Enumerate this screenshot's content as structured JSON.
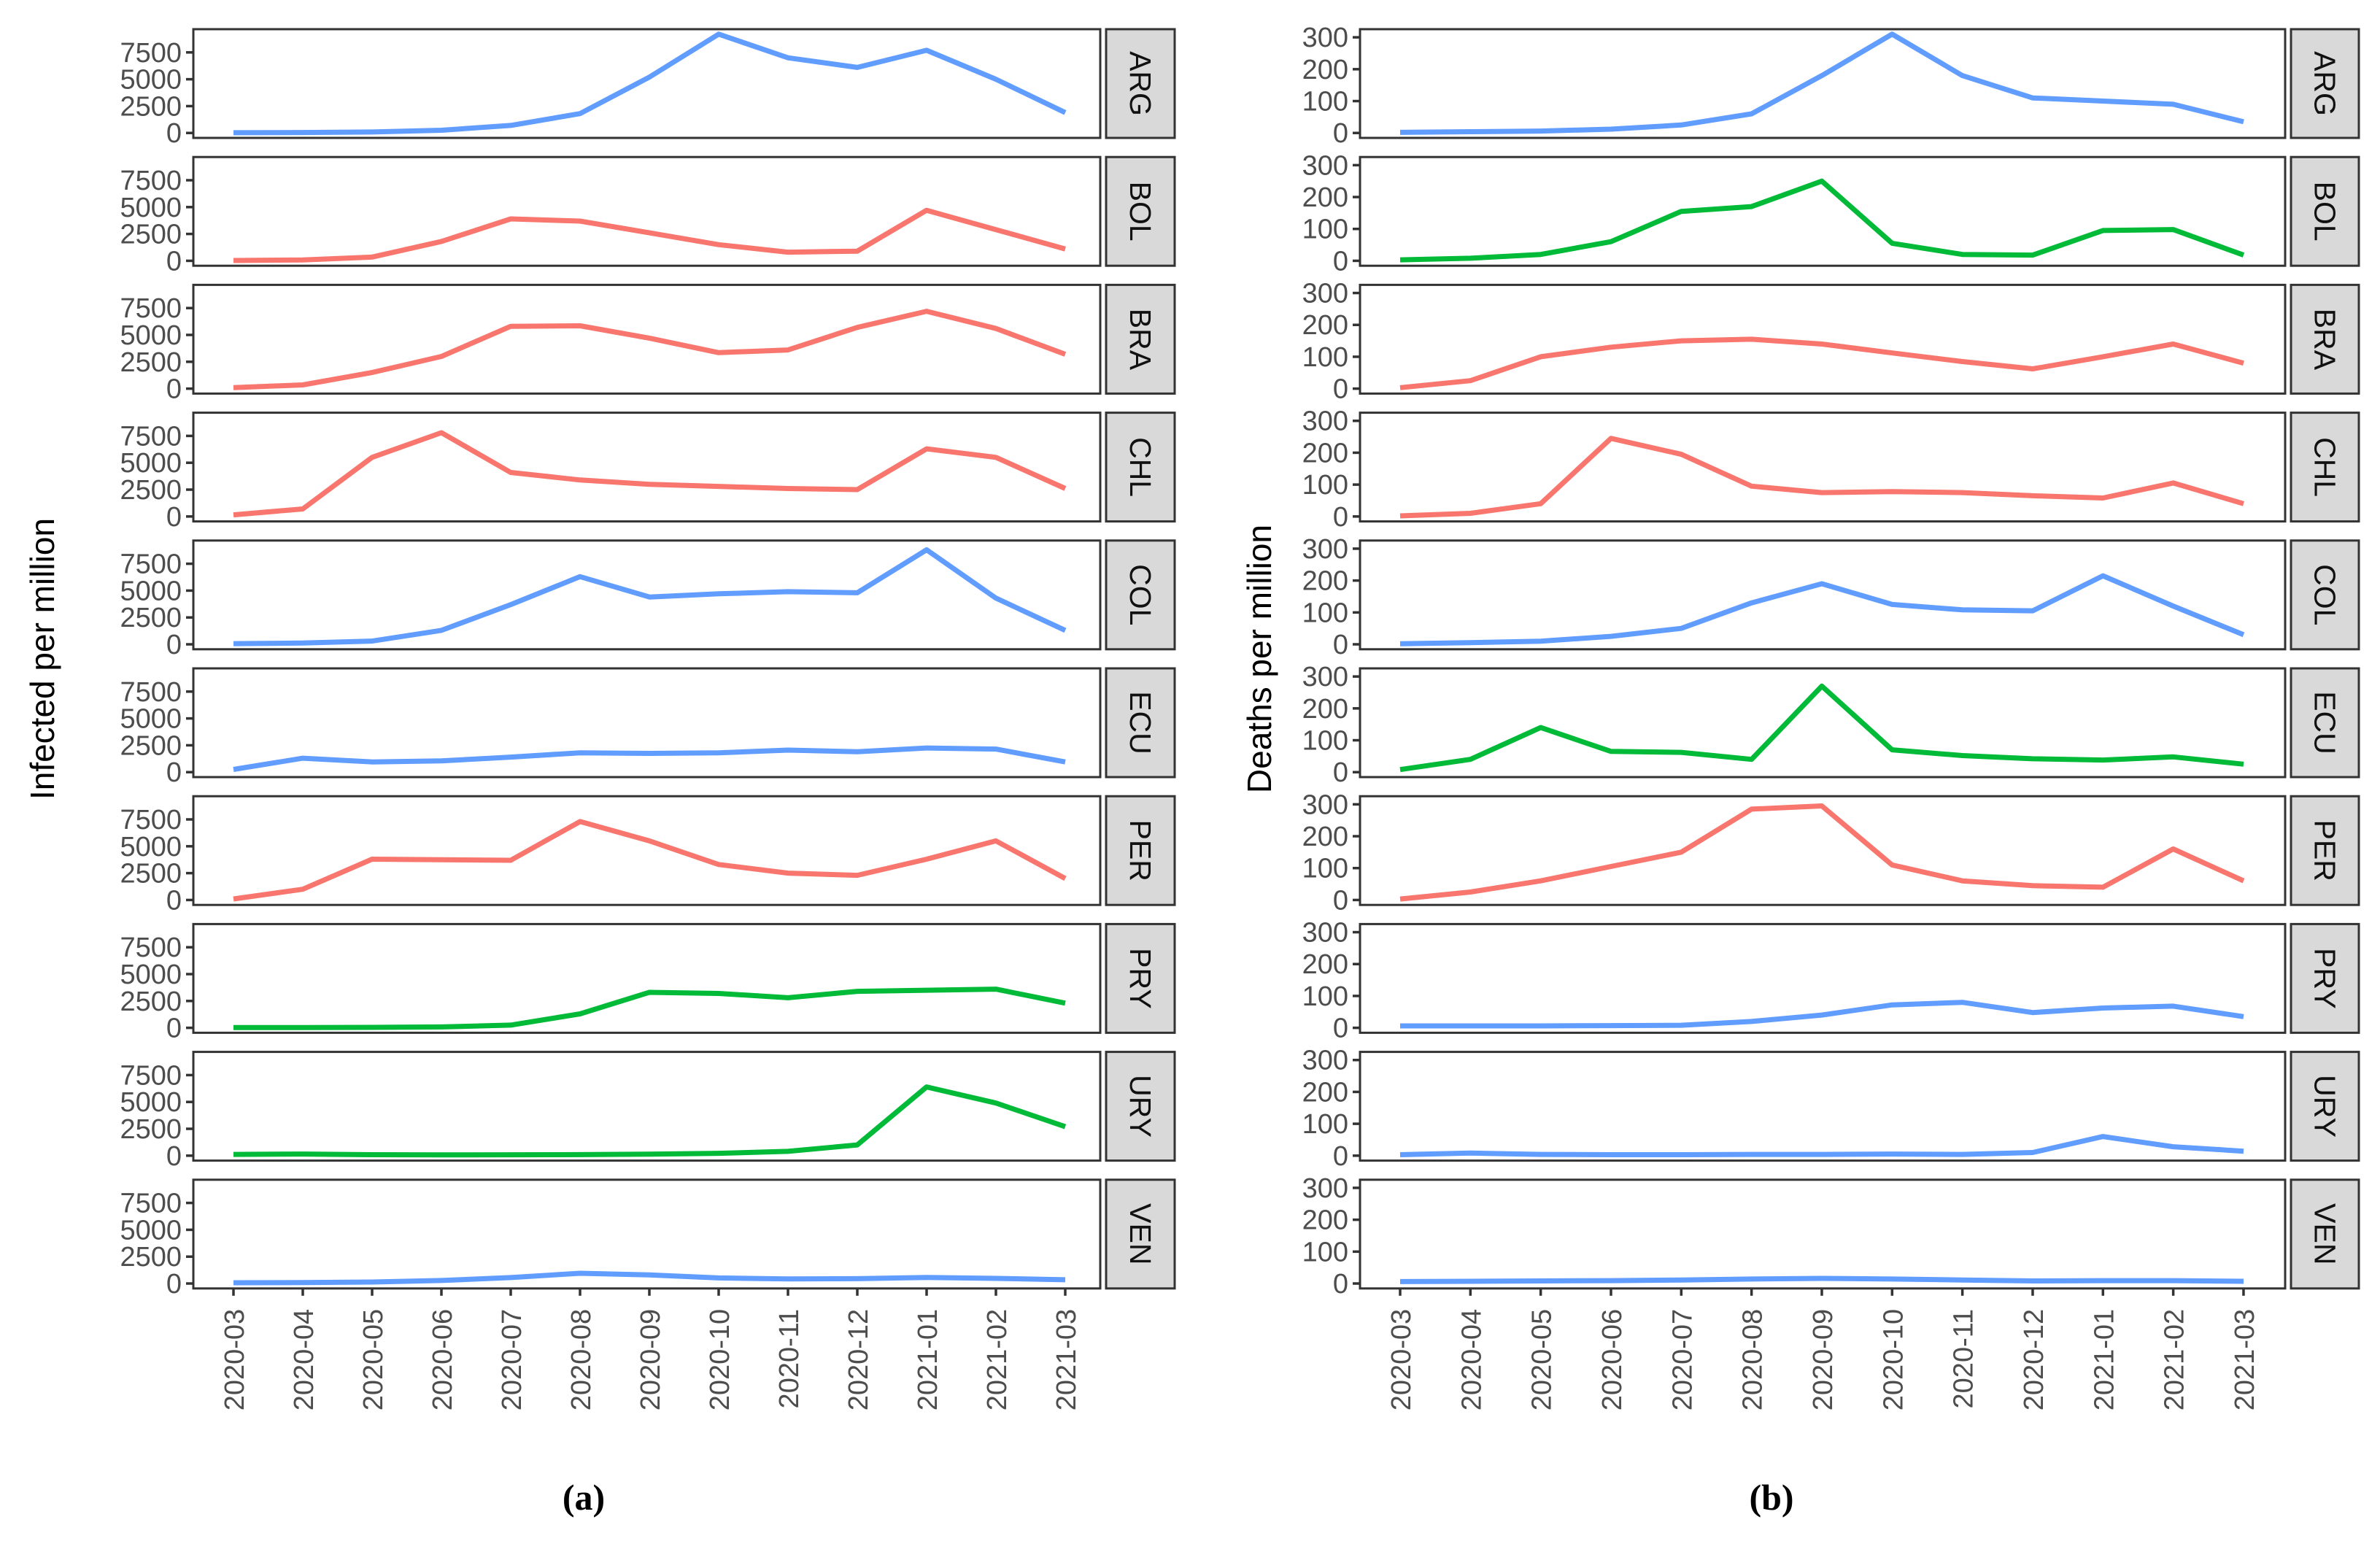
{
  "figure_kind": "faceted-line-chart-two-panels",
  "colors": {
    "red": "#F8766D",
    "green": "#00BA38",
    "blue": "#619CFF",
    "strip_bg": "#D9D9D9",
    "panel_border": "#333333",
    "tick_text": "#4D4D4D",
    "strip_text": "#111111"
  },
  "chart_data": [
    {
      "type": "line",
      "panel": "a",
      "caption": "(a)",
      "ylabel": "Infected per million",
      "xlabel": "",
      "legend": "none",
      "grid": false,
      "yticks": [
        0,
        2500,
        5000,
        7500
      ],
      "ylim": [
        0,
        9200
      ],
      "x_labels": [
        "2020-03",
        "2020-04",
        "2020-05",
        "2020-06",
        "2020-07",
        "2020-08",
        "2020-09",
        "2020-10",
        "2020-11",
        "2020-12",
        "2021-01",
        "2021-02",
        "2021-03"
      ],
      "facets": [
        {
          "label": "ARG",
          "color": "#619CFF",
          "values": [
            20,
            40,
            90,
            250,
            700,
            1800,
            5200,
            9200,
            7000,
            6100,
            7700,
            5000,
            1900
          ]
        },
        {
          "label": "BOL",
          "color": "#F8766D",
          "values": [
            30,
            80,
            350,
            1800,
            3900,
            3700,
            2600,
            1500,
            800,
            900,
            4700,
            2900,
            1100
          ]
        },
        {
          "label": "BRA",
          "color": "#F8766D",
          "values": [
            100,
            350,
            1500,
            3000,
            5800,
            5850,
            4700,
            3350,
            3600,
            5700,
            7200,
            5600,
            3200
          ]
        },
        {
          "label": "CHL",
          "color": "#F8766D",
          "values": [
            150,
            700,
            5500,
            7800,
            4100,
            3400,
            3000,
            2800,
            2600,
            2500,
            6300,
            5500,
            2600
          ]
        },
        {
          "label": "COL",
          "color": "#619CFF",
          "values": [
            60,
            120,
            300,
            1300,
            3700,
            6300,
            4400,
            4700,
            4900,
            4800,
            8800,
            4300,
            1300
          ]
        },
        {
          "label": "ECU",
          "color": "#619CFF",
          "values": [
            250,
            1300,
            950,
            1050,
            1400,
            1800,
            1750,
            1800,
            2050,
            1900,
            2250,
            2150,
            950
          ]
        },
        {
          "label": "PER",
          "color": "#F8766D",
          "values": [
            100,
            1000,
            3800,
            3750,
            3700,
            7300,
            5500,
            3300,
            2500,
            2300,
            3800,
            5500,
            2000
          ]
        },
        {
          "label": "PRY",
          "color": "#00BA38",
          "values": [
            25,
            30,
            45,
            80,
            250,
            1300,
            3300,
            3200,
            2800,
            3400,
            3500,
            3600,
            2300
          ]
        },
        {
          "label": "URY",
          "color": "#00BA38",
          "values": [
            120,
            150,
            90,
            70,
            80,
            100,
            140,
            220,
            400,
            1000,
            6400,
            4900,
            2700
          ]
        },
        {
          "label": "VEN",
          "color": "#619CFF",
          "values": [
            70,
            80,
            140,
            280,
            550,
            950,
            800,
            520,
            420,
            450,
            560,
            480,
            350
          ]
        }
      ]
    },
    {
      "type": "line",
      "panel": "b",
      "caption": "(b)",
      "ylabel": "Deaths per million",
      "xlabel": "",
      "legend": "none",
      "grid": false,
      "yticks": [
        0,
        100,
        200,
        300
      ],
      "ylim": [
        0,
        310
      ],
      "x_labels": [
        "2020-03",
        "2020-04",
        "2020-05",
        "2020-06",
        "2020-07",
        "2020-08",
        "2020-09",
        "2020-10",
        "2020-11",
        "2020-12",
        "2021-01",
        "2021-02",
        "2021-03"
      ],
      "facets": [
        {
          "label": "ARG",
          "color": "#619CFF",
          "values": [
            2,
            4,
            6,
            12,
            25,
            60,
            180,
            310,
            180,
            110,
            100,
            90,
            35
          ]
        },
        {
          "label": "BOL",
          "color": "#00BA38",
          "values": [
            3,
            8,
            20,
            60,
            155,
            170,
            250,
            55,
            20,
            18,
            95,
            98,
            18
          ]
        },
        {
          "label": "BRA",
          "color": "#F8766D",
          "values": [
            3,
            25,
            100,
            130,
            150,
            155,
            140,
            112,
            85,
            62,
            100,
            140,
            80
          ]
        },
        {
          "label": "CHL",
          "color": "#F8766D",
          "values": [
            2,
            10,
            40,
            245,
            195,
            95,
            75,
            78,
            75,
            65,
            58,
            105,
            40
          ]
        },
        {
          "label": "COL",
          "color": "#619CFF",
          "values": [
            2,
            5,
            10,
            25,
            50,
            130,
            190,
            125,
            108,
            105,
            215,
            120,
            30
          ]
        },
        {
          "label": "ECU",
          "color": "#00BA38",
          "values": [
            8,
            40,
            140,
            65,
            62,
            40,
            270,
            70,
            52,
            42,
            38,
            48,
            25
          ]
        },
        {
          "label": "PER",
          "color": "#F8766D",
          "values": [
            3,
            25,
            60,
            105,
            150,
            285,
            295,
            110,
            60,
            45,
            40,
            160,
            60
          ]
        },
        {
          "label": "PRY",
          "color": "#619CFF",
          "values": [
            6,
            6,
            6,
            7,
            8,
            20,
            40,
            72,
            80,
            48,
            62,
            68,
            35
          ]
        },
        {
          "label": "URY",
          "color": "#619CFF",
          "values": [
            3,
            8,
            4,
            3,
            3,
            4,
            4,
            5,
            4,
            10,
            60,
            28,
            14
          ]
        },
        {
          "label": "VEN",
          "color": "#619CFF",
          "values": [
            6,
            7,
            8,
            9,
            11,
            14,
            16,
            14,
            11,
            8,
            9,
            9,
            7
          ]
        }
      ]
    }
  ]
}
